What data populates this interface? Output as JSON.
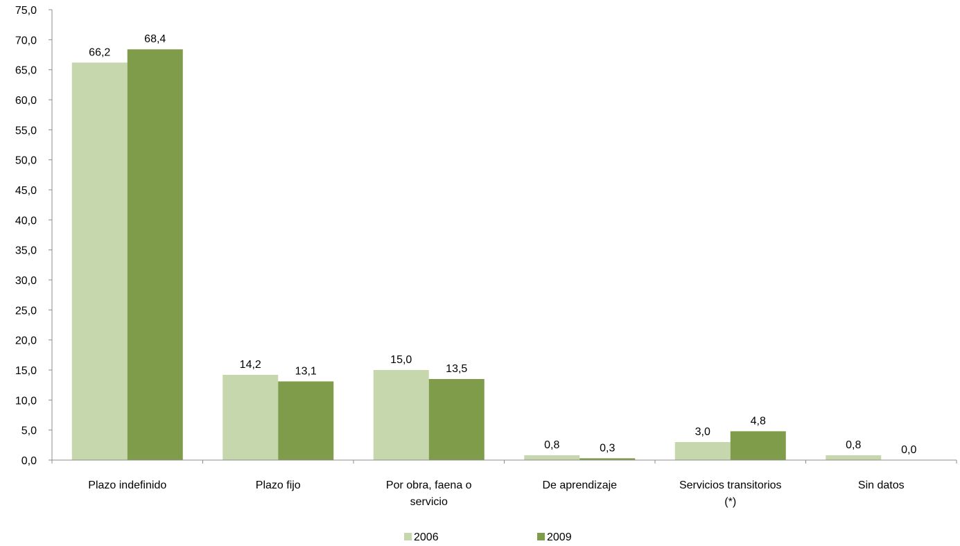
{
  "chart_data": {
    "type": "bar",
    "title": "",
    "xlabel": "",
    "ylabel": "",
    "categories": [
      [
        "Plazo indefinido"
      ],
      [
        "Plazo fijo"
      ],
      [
        "Por obra, faena o",
        "servicio"
      ],
      [
        "De aprendizaje"
      ],
      [
        "Servicios transitorios",
        "(*)"
      ],
      [
        "Sin datos"
      ]
    ],
    "series": [
      {
        "name": "2006",
        "color": "#c6d7ae",
        "values": [
          66.2,
          14.2,
          15.0,
          0.8,
          3.0,
          0.8
        ],
        "labels": [
          "66,2",
          "14,2",
          "15,0",
          "0,8",
          "3,0",
          "0,8"
        ]
      },
      {
        "name": "2009",
        "color": "#7f9c4a",
        "values": [
          68.4,
          13.1,
          13.5,
          0.3,
          4.8,
          0.0
        ],
        "labels": [
          "68,4",
          "13,1",
          "13,5",
          "0,3",
          "4,8",
          "0,0"
        ]
      }
    ],
    "ylim": [
      0,
      75
    ],
    "yticks": [
      "0,0",
      "5,0",
      "10,0",
      "15,0",
      "20,0",
      "25,0",
      "30,0",
      "35,0",
      "40,0",
      "45,0",
      "50,0",
      "55,0",
      "60,0",
      "65,0",
      "70,0",
      "75,0"
    ],
    "grid": false,
    "legend": "bottom-center"
  }
}
